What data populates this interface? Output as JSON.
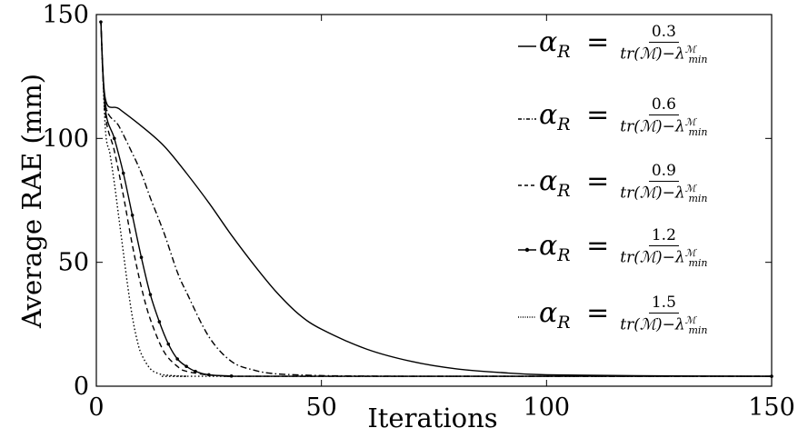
{
  "chart_data": {
    "type": "line",
    "xlabel": "Iterations",
    "ylabel": "Average RAE (mm)",
    "xlim": [
      0,
      150
    ],
    "ylim": [
      0,
      150
    ],
    "xticks": [
      "0",
      "50",
      "100",
      "150"
    ],
    "yticks": [
      "0",
      "50",
      "100",
      "150"
    ],
    "grid": false,
    "legend_position": "right",
    "series": [
      {
        "name": "αR = 0.3/(tr(M)−λmin^M)",
        "style": "solid",
        "color": "#000000",
        "x": [
          1,
          2,
          5,
          10,
          15,
          20,
          25,
          30,
          35,
          40,
          45,
          50,
          60,
          70,
          80,
          90,
          100,
          120,
          150
        ],
        "y": [
          147,
          116,
          112,
          105,
          97,
          86,
          74,
          61,
          49,
          38,
          29,
          23,
          15,
          10,
          7,
          5.5,
          4.6,
          4.2,
          4.0
        ]
      },
      {
        "name": "αR = 0.6/(tr(M)−λmin^M)",
        "style": "dashdot",
        "color": "#000000",
        "x": [
          1,
          2,
          5,
          8,
          10,
          12,
          15,
          18,
          20,
          25,
          30,
          35,
          40,
          50,
          60,
          80,
          150
        ],
        "y": [
          147,
          114,
          105,
          94,
          86,
          76,
          62,
          46,
          38,
          20,
          10,
          6.5,
          5,
          4.3,
          4.1,
          4.0,
          4.0
        ]
      },
      {
        "name": "αR = 0.9/(tr(M)−λmin^M)",
        "style": "dashed",
        "color": "#000000",
        "x": [
          1,
          2,
          4,
          6,
          8,
          10,
          12,
          15,
          18,
          20,
          25,
          30,
          40,
          150
        ],
        "y": [
          147,
          110,
          95,
          77,
          57,
          40,
          27,
          14,
          8,
          6,
          4.5,
          4.1,
          4.0,
          4.0
        ]
      },
      {
        "name": "αR = 1.2/(tr(M)−λmin^M)",
        "style": "dotted-markers",
        "color": "#000000",
        "x": [
          1,
          2,
          4,
          6,
          8,
          10,
          12,
          14,
          16,
          18,
          20,
          22,
          25,
          30,
          40,
          150
        ],
        "y": [
          147,
          112,
          100,
          86,
          69,
          52,
          37,
          26,
          17,
          11,
          8,
          6,
          4.6,
          4.1,
          4.0,
          4.0
        ]
      },
      {
        "name": "αR = 1.5/(tr(M)−λmin^M)",
        "style": "dotted",
        "color": "#000000",
        "x": [
          1,
          2,
          3,
          4,
          5,
          6,
          7,
          8,
          9,
          10,
          12,
          14,
          16,
          20,
          25,
          150
        ],
        "y": [
          147,
          104,
          94,
          82,
          68,
          54,
          40,
          28,
          19,
          13,
          7,
          5,
          4.4,
          4.0,
          4.0,
          4.0
        ]
      }
    ]
  },
  "legend": [
    {
      "lhs_main": "α",
      "lhs_sub": "R",
      "eq": "=",
      "num": "0.3",
      "den_pre": "tr(",
      "den_sym": "ℳ",
      "den_post": ")−λ",
      "den_sup": "ℳ",
      "den_sub": "min"
    },
    {
      "lhs_main": "α",
      "lhs_sub": "R",
      "eq": "=",
      "num": "0.6",
      "den_pre": "tr(",
      "den_sym": "ℳ",
      "den_post": ")−λ",
      "den_sup": "ℳ",
      "den_sub": "min"
    },
    {
      "lhs_main": "α",
      "lhs_sub": "R",
      "eq": "=",
      "num": "0.9",
      "den_pre": "tr(",
      "den_sym": "ℳ",
      "den_post": ")−λ",
      "den_sup": "ℳ",
      "den_sub": "min"
    },
    {
      "lhs_main": "α",
      "lhs_sub": "R",
      "eq": "=",
      "num": "1.2",
      "den_pre": "tr(",
      "den_sym": "ℳ",
      "den_post": ")−λ",
      "den_sup": "ℳ",
      "den_sub": "min"
    },
    {
      "lhs_main": "α",
      "lhs_sub": "R",
      "eq": "=",
      "num": "1.5",
      "den_pre": "tr(",
      "den_sym": "ℳ",
      "den_post": ")−λ",
      "den_sup": "ℳ",
      "den_sub": "min"
    }
  ]
}
